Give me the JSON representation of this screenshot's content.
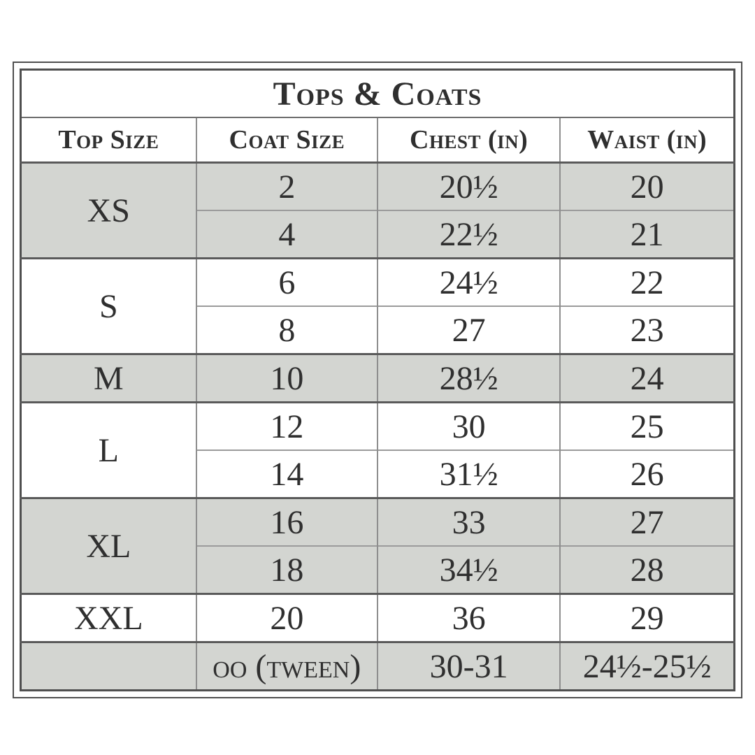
{
  "chart_data": {
    "type": "table",
    "title": "Tops & Coats",
    "columns": [
      "Top Size",
      "Coat Size",
      "Chest (in)",
      "Waist (in)"
    ],
    "groups": [
      {
        "top_size": "XS",
        "shaded": true,
        "rows": [
          [
            "2",
            "20½",
            "20"
          ],
          [
            "4",
            "22½",
            "21"
          ]
        ]
      },
      {
        "top_size": "S",
        "shaded": false,
        "rows": [
          [
            "6",
            "24½",
            "22"
          ],
          [
            "8",
            "27",
            "23"
          ]
        ]
      },
      {
        "top_size": "M",
        "shaded": true,
        "rows": [
          [
            "10",
            "28½",
            "24"
          ]
        ]
      },
      {
        "top_size": "L",
        "shaded": false,
        "rows": [
          [
            "12",
            "30",
            "25"
          ],
          [
            "14",
            "31½",
            "26"
          ]
        ]
      },
      {
        "top_size": "XL",
        "shaded": true,
        "rows": [
          [
            "16",
            "33",
            "27"
          ],
          [
            "18",
            "34½",
            "28"
          ]
        ]
      },
      {
        "top_size": "XXL",
        "shaded": false,
        "rows": [
          [
            "20",
            "36",
            "29"
          ]
        ]
      },
      {
        "top_size": "",
        "shaded": true,
        "rows": [
          [
            "oo (tween)",
            "30-31",
            "24½-25½"
          ]
        ]
      }
    ]
  },
  "colors": {
    "shaded_row": "#d3d5d1",
    "text": "#2f2f2f",
    "frame_border": "#4f4f4f",
    "group_line": "#5a5a5a",
    "column_line": "#8e8e8e",
    "subrow_line": "#9b9b9b",
    "background": "#ffffff"
  }
}
